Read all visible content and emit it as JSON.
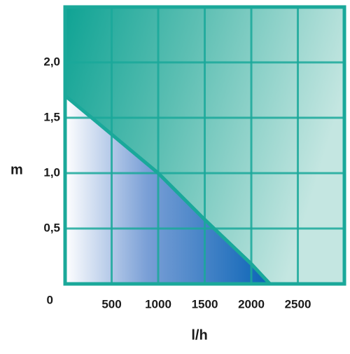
{
  "chart_data": {
    "type": "area",
    "x": [
      0,
      500,
      1000,
      1500,
      2000,
      2200
    ],
    "values": [
      1.7,
      1.35,
      1.0,
      0.58,
      0.18,
      0
    ],
    "xlabel": "l/h",
    "ylabel": "m",
    "xlim": [
      0,
      3000
    ],
    "ylim": [
      0,
      2.5
    ],
    "xticks": [
      500,
      1000,
      1500,
      2000,
      2500
    ],
    "yticks": [
      0,
      {
        "value": 0.5,
        "label": "0,5"
      },
      {
        "value": 1.0,
        "label": "1,0"
      },
      {
        "value": 1.5,
        "label": "1,5"
      },
      {
        "value": 2.0,
        "label": "2,0"
      }
    ],
    "grid": true,
    "color": "#1aa89a"
  }
}
